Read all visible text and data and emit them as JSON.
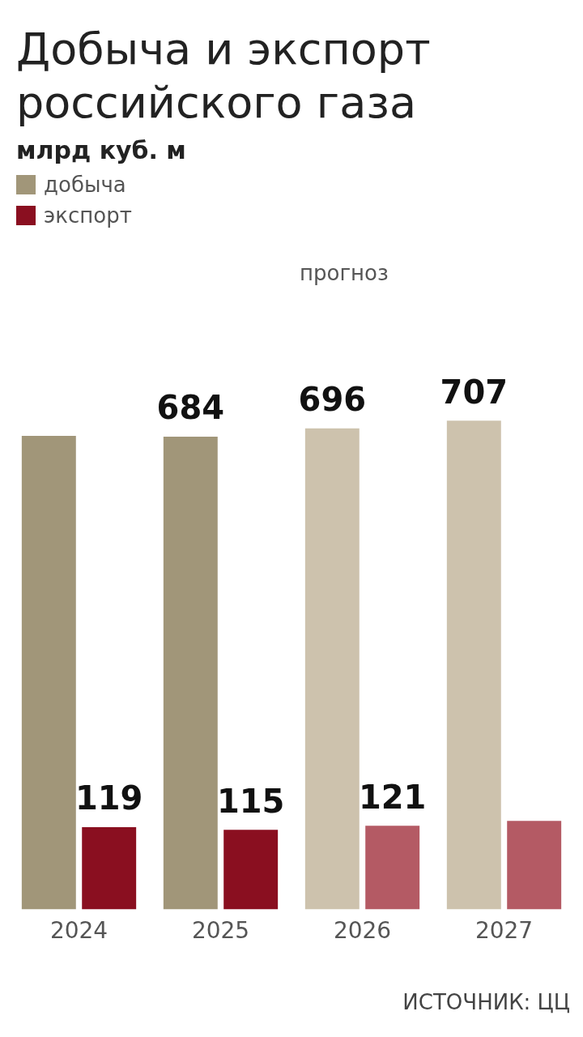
{
  "chart_data": {
    "type": "bar",
    "title": "Добыча и экспорт российского газа",
    "subtitle": "млрд куб. м",
    "legend": "top left",
    "grid": false,
    "categories": [
      "2024",
      "2025",
      "2026",
      "2027"
    ],
    "series": [
      {
        "name": "добыча",
        "colors": [
          "#a19679",
          "#a19679",
          "#cdc2ad",
          "#cdc2ad"
        ],
        "values": [
          685,
          684,
          696,
          707
        ],
        "value_labels": [
          null,
          "684",
          "696",
          "707"
        ]
      },
      {
        "name": "экспорт",
        "colors": [
          "#8a0f20",
          "#8a0f20",
          "#b45a64",
          "#b45a64"
        ],
        "values": [
          119,
          115,
          121,
          128
        ],
        "value_labels": [
          "119",
          "115",
          "121",
          null
        ]
      }
    ],
    "annotations": [
      "прогноз",
      "ИСТОЧНИК: ЦЦ"
    ]
  }
}
